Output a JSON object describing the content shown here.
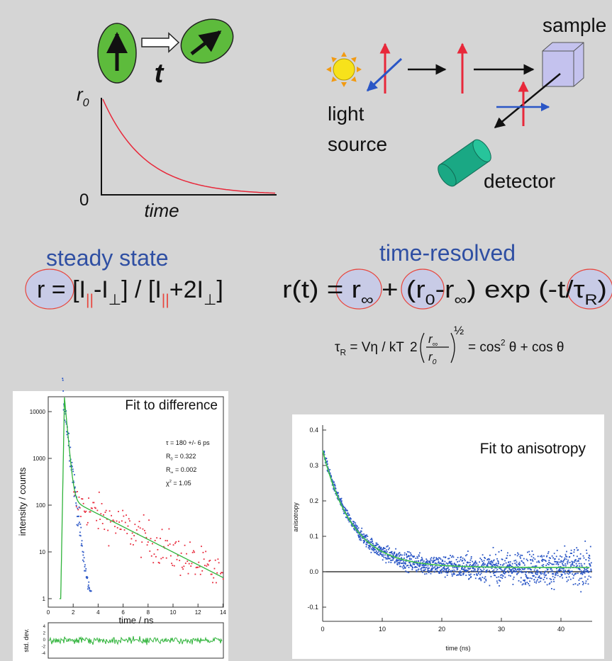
{
  "rotation": {
    "time_symbol": "t"
  },
  "decay_sketch": {
    "y_label": [
      {
        "text": "r"
      },
      {
        "sub": "0"
      }
    ],
    "zero_label": "0",
    "x_label": "time"
  },
  "setup": {
    "light_source": [
      "light",
      "source"
    ],
    "sample": "sample",
    "detector": "detector"
  },
  "steady_state": {
    "heading": "steady state",
    "equation": [
      {
        "text": "r = [I"
      },
      {
        "sub": "||",
        "color": "#e8453c"
      },
      {
        "text": "-I"
      },
      {
        "sub": "⊥"
      },
      {
        "text": "] / [I"
      },
      {
        "sub": "||",
        "color": "#e8453c"
      },
      {
        "text": "+2I"
      },
      {
        "sub": "⊥"
      },
      {
        "text": "]"
      }
    ]
  },
  "time_resolved": {
    "heading": "time-resolved",
    "equation": [
      {
        "text": "r(t) = r"
      },
      {
        "sub": "∞"
      },
      {
        "text": " + (r"
      },
      {
        "sub": "0"
      },
      {
        "text": "-r"
      },
      {
        "sub": "∞"
      },
      {
        "text": ") exp (-t/τ"
      },
      {
        "sub": "R"
      },
      {
        "text": ")"
      }
    ]
  },
  "relations": {
    "rotational_time": [
      {
        "text": "τ"
      },
      {
        "sub": "R"
      },
      {
        "text": " = Vη / kT"
      }
    ],
    "cone": {
      "coefficient": "2",
      "numerator": [
        {
          "text": "r"
        },
        {
          "sub": "∞"
        }
      ],
      "denominator": [
        {
          "text": "r"
        },
        {
          "sub": "0"
        }
      ],
      "exponent": "½",
      "rhs": [
        {
          "text": "= cos"
        },
        {
          "sup": "2"
        },
        {
          "text": " θ + cos θ"
        }
      ]
    }
  },
  "fit_difference": {
    "title": "Fit to difference",
    "y_label": "intensity / counts",
    "x_label": "time / ns",
    "yticks": [
      "10000",
      "1000",
      "100",
      "10",
      "1"
    ],
    "xticks": [
      "0",
      "2",
      "4",
      "6",
      "8",
      "10",
      "12",
      "14"
    ],
    "annotations": [
      [
        {
          "text": "τ = 180 +/- 6 ps"
        }
      ],
      [
        {
          "text": "R"
        },
        {
          "sub": "0"
        },
        {
          "text": " = 0.322"
        }
      ],
      [
        {
          "text": "R"
        },
        {
          "sub": "∞"
        },
        {
          "text": " = 0.002"
        }
      ],
      [
        {
          "text": "χ"
        },
        {
          "sup": "2"
        },
        {
          "text": " = 1.05"
        }
      ]
    ],
    "residual_label": "std. dev.",
    "residual_ticks": [
      "4",
      "2",
      "0",
      "-2",
      "-4"
    ]
  },
  "fit_anisotropy": {
    "title": "Fit to anisotropy",
    "y_label": "anisotropy",
    "x_label": "time (ns)",
    "yticks": [
      "0.4",
      "0.3",
      "0.2",
      "0.1",
      "0.0",
      "-0.1"
    ],
    "xticks": [
      "0",
      "10",
      "20",
      "30",
      "40"
    ]
  }
}
